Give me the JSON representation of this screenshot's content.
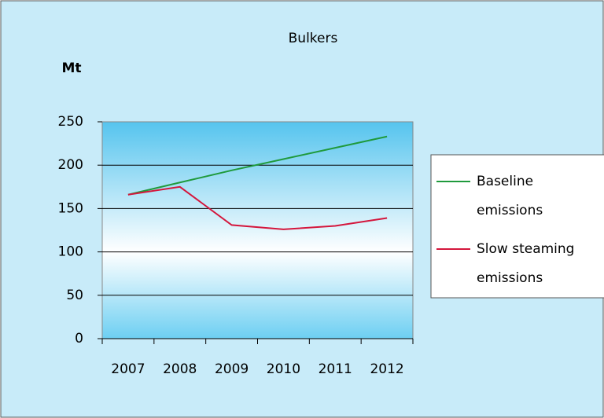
{
  "chart_data": {
    "type": "line",
    "title": "Bulkers",
    "y_label": "Mt",
    "categories": [
      "2007",
      "2008",
      "2009",
      "2010",
      "2011",
      "2012"
    ],
    "series": [
      {
        "name": "Baseline emissions",
        "color": "#1f9a3c",
        "values": [
          166,
          180,
          194,
          207,
          220,
          233
        ]
      },
      {
        "name": "Slow steaming emissions",
        "color": "#d4163c",
        "values": [
          166,
          175,
          131,
          126,
          130,
          139
        ]
      }
    ],
    "ylim": [
      0,
      250
    ],
    "yticks": [
      0,
      50,
      100,
      150,
      200,
      250
    ],
    "grid": true,
    "legend": "right"
  }
}
